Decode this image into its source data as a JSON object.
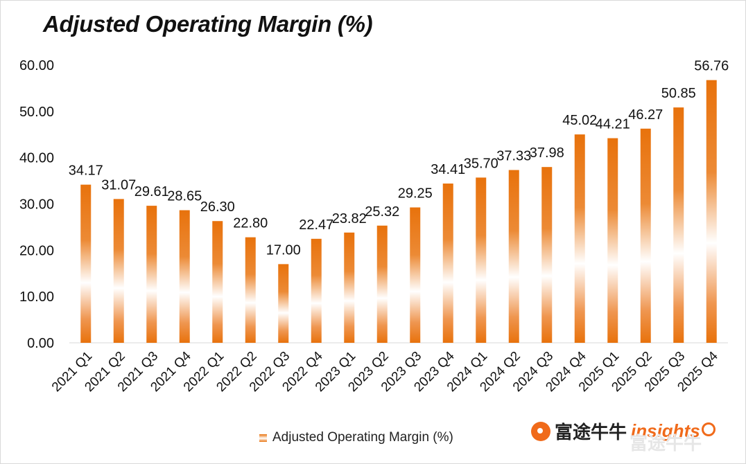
{
  "header": {
    "title": "Adjusted Operating Margin (%)"
  },
  "legend": {
    "label": "Adjusted Operating Margin (%)"
  },
  "brand": {
    "cn": "富途牛牛",
    "insights": "insights",
    "watermark": "富途牛牛"
  },
  "colors": {
    "bar": "#e8720c",
    "axis": "#d9d9d9",
    "text": "#111111"
  },
  "chart_data": {
    "type": "bar",
    "title": "Adjusted Operating Margin (%)",
    "xlabel": "",
    "ylabel": "",
    "ylim": [
      0,
      60
    ],
    "yticks": [
      "0.00",
      "10.00",
      "20.00",
      "30.00",
      "40.00",
      "50.00",
      "60.00"
    ],
    "grid": false,
    "legend_position": "bottom",
    "categories": [
      "2021 Q1",
      "2021 Q2",
      "2021 Q3",
      "2021 Q4",
      "2022 Q1",
      "2022 Q2",
      "2022 Q3",
      "2022 Q4",
      "2023 Q1",
      "2023 Q2",
      "2023 Q3",
      "2023 Q4",
      "2024 Q1",
      "2024 Q2",
      "2024 Q3",
      "2024 Q4",
      "2025 Q1",
      "2025 Q2",
      "2025 Q3",
      "2025 Q4"
    ],
    "series": [
      {
        "name": "Adjusted Operating Margin (%)",
        "values": [
          34.17,
          31.07,
          29.61,
          28.65,
          26.3,
          22.8,
          17.0,
          22.47,
          23.82,
          25.32,
          29.25,
          34.41,
          35.7,
          37.33,
          37.98,
          45.02,
          44.21,
          46.27,
          50.85,
          56.76
        ],
        "labels": [
          "34.17",
          "31.07",
          "29.61",
          "28.65",
          "26.30",
          "22.80",
          "17.00",
          "22.47",
          "23.82",
          "25.32",
          "29.25",
          "34.41",
          "35.70",
          "37.33",
          "37.98",
          "45.02",
          "44.21",
          "46.27",
          "50.85",
          "56.76"
        ]
      }
    ]
  }
}
